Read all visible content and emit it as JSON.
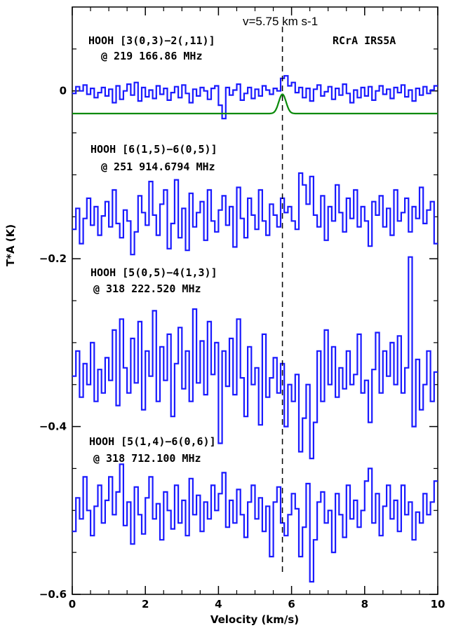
{
  "chart_data": {
    "type": "line",
    "title": "",
    "xlabel": "Velocity (km/s)",
    "ylabel": "T*A (K)",
    "xlim": [
      0,
      10
    ],
    "ylim": [
      -0.6,
      0.1
    ],
    "xticks": [
      0,
      2,
      4,
      6,
      8,
      10
    ],
    "xtick_labels": [
      "0",
      "2",
      "4",
      "6",
      "8",
      "10"
    ],
    "yticks": [
      0,
      -0.2,
      -0.4,
      -0.6
    ],
    "ytick_labels": [
      "0",
      "−0.2",
      "−0.4",
      "−0.6"
    ],
    "grid": false,
    "source_label": "RCrA IRS5A",
    "vline": {
      "x": 5.75,
      "label": "v=5.75 km s-1",
      "style": "dashed"
    },
    "series": [
      {
        "label_line1": "HOOH [3(0,3)−2(,11)]",
        "label_line2": "@ 219 166.86 MHz",
        "color": "#1a1aff",
        "x": [
          0.0,
          0.1,
          0.2,
          0.3,
          0.4,
          0.5,
          0.6,
          0.7,
          0.8,
          0.9,
          1.0,
          1.1,
          1.2,
          1.3,
          1.4,
          1.5,
          1.6,
          1.7,
          1.8,
          1.9,
          2.0,
          2.1,
          2.2,
          2.3,
          2.4,
          2.5,
          2.6,
          2.7,
          2.8,
          2.9,
          3.0,
          3.1,
          3.2,
          3.3,
          3.4,
          3.5,
          3.6,
          3.7,
          3.8,
          3.9,
          4.0,
          4.1,
          4.2,
          4.3,
          4.4,
          4.5,
          4.6,
          4.7,
          4.8,
          4.9,
          5.0,
          5.1,
          5.2,
          5.3,
          5.4,
          5.5,
          5.6,
          5.7,
          5.8,
          5.9,
          6.0,
          6.1,
          6.2,
          6.3,
          6.4,
          6.5,
          6.6,
          6.7,
          6.8,
          6.9,
          7.0,
          7.1,
          7.2,
          7.3,
          7.4,
          7.5,
          7.6,
          7.7,
          7.8,
          7.9,
          8.0,
          8.1,
          8.2,
          8.3,
          8.4,
          8.5,
          8.6,
          8.7,
          8.8,
          8.9,
          9.0,
          9.1,
          9.2,
          9.3,
          9.4,
          9.5,
          9.6,
          9.7,
          9.8,
          9.9
        ],
        "y": [
          -0.003,
          0.005,
          0.0,
          0.007,
          -0.004,
          0.003,
          -0.008,
          -0.002,
          0.004,
          -0.006,
          0.002,
          -0.014,
          0.006,
          -0.01,
          0.0,
          0.008,
          -0.005,
          0.01,
          -0.012,
          0.004,
          -0.007,
          0.001,
          -0.009,
          0.006,
          -0.004,
          0.003,
          -0.011,
          -0.002,
          0.005,
          -0.008,
          0.007,
          -0.003,
          -0.014,
          0.002,
          -0.006,
          0.004,
          0.0,
          -0.01,
          0.003,
          0.006,
          -0.017,
          -0.033,
          0.004,
          -0.005,
          0.001,
          0.008,
          -0.011,
          -0.003,
          0.004,
          -0.009,
          0.002,
          -0.006,
          0.006,
          0.001,
          -0.004,
          0.003,
          0.0,
          0.015,
          0.018,
          0.006,
          0.01,
          -0.002,
          0.004,
          -0.008,
          0.003,
          -0.012,
          0.002,
          0.007,
          -0.006,
          -0.001,
          0.005,
          -0.01,
          0.003,
          -0.005,
          0.008,
          -0.003,
          -0.014,
          0.001,
          -0.008,
          0.004,
          -0.006,
          0.005,
          -0.011,
          0.0,
          0.006,
          -0.004,
          0.002,
          -0.009,
          0.004,
          -0.002,
          0.007,
          -0.007,
          0.001,
          -0.012,
          0.003,
          -0.005,
          0.005,
          -0.003,
          0.001,
          0.006
        ]
      },
      {
        "label_line1": "HOOH [6(1,5)−6(0,5)]",
        "label_line2": "@ 251 914.6794 MHz",
        "color": "#1a1aff",
        "x": [
          0.0,
          0.1,
          0.2,
          0.3,
          0.4,
          0.5,
          0.6,
          0.7,
          0.8,
          0.9,
          1.0,
          1.1,
          1.2,
          1.3,
          1.4,
          1.5,
          1.6,
          1.7,
          1.8,
          1.9,
          2.0,
          2.1,
          2.2,
          2.3,
          2.4,
          2.5,
          2.6,
          2.7,
          2.8,
          2.9,
          3.0,
          3.1,
          3.2,
          3.3,
          3.4,
          3.5,
          3.6,
          3.7,
          3.8,
          3.9,
          4.0,
          4.1,
          4.2,
          4.3,
          4.4,
          4.5,
          4.6,
          4.7,
          4.8,
          4.9,
          5.0,
          5.1,
          5.2,
          5.3,
          5.4,
          5.5,
          5.6,
          5.7,
          5.8,
          5.9,
          6.0,
          6.1,
          6.2,
          6.3,
          6.4,
          6.5,
          6.6,
          6.7,
          6.8,
          6.9,
          7.0,
          7.1,
          7.2,
          7.3,
          7.4,
          7.5,
          7.6,
          7.7,
          7.8,
          7.9,
          8.0,
          8.1,
          8.2,
          8.3,
          8.4,
          8.5,
          8.6,
          8.7,
          8.8,
          8.9,
          9.0,
          9.1,
          9.2,
          9.3,
          9.4,
          9.5,
          9.6,
          9.7,
          9.8,
          9.9
        ],
        "y": [
          -0.165,
          -0.14,
          -0.182,
          -0.152,
          -0.128,
          -0.16,
          -0.138,
          -0.172,
          -0.149,
          -0.132,
          -0.162,
          -0.118,
          -0.158,
          -0.175,
          -0.142,
          -0.155,
          -0.195,
          -0.168,
          -0.125,
          -0.145,
          -0.16,
          -0.108,
          -0.148,
          -0.172,
          -0.135,
          -0.118,
          -0.188,
          -0.158,
          -0.106,
          -0.175,
          -0.14,
          -0.19,
          -0.122,
          -0.162,
          -0.145,
          -0.132,
          -0.178,
          -0.118,
          -0.155,
          -0.168,
          -0.142,
          -0.125,
          -0.16,
          -0.138,
          -0.186,
          -0.115,
          -0.152,
          -0.175,
          -0.128,
          -0.148,
          -0.165,
          -0.118,
          -0.155,
          -0.172,
          -0.135,
          -0.148,
          -0.162,
          -0.128,
          -0.145,
          -0.138,
          -0.155,
          -0.165,
          -0.098,
          -0.112,
          -0.135,
          -0.102,
          -0.148,
          -0.162,
          -0.125,
          -0.178,
          -0.138,
          -0.155,
          -0.112,
          -0.145,
          -0.168,
          -0.128,
          -0.152,
          -0.118,
          -0.162,
          -0.138,
          -0.155,
          -0.185,
          -0.132,
          -0.148,
          -0.125,
          -0.162,
          -0.14,
          -0.172,
          -0.118,
          -0.155,
          -0.145,
          -0.128,
          -0.168,
          -0.138,
          -0.152,
          -0.115,
          -0.158,
          -0.142,
          -0.132,
          -0.182
        ]
      },
      {
        "label_line1": "HOOH [5(0,5)−4(1,3)]",
        "label_line2": "@ 318 222.520 MHz",
        "color": "#1a1aff",
        "x": [
          0.0,
          0.1,
          0.2,
          0.3,
          0.4,
          0.5,
          0.6,
          0.7,
          0.8,
          0.9,
          1.0,
          1.1,
          1.2,
          1.3,
          1.4,
          1.5,
          1.6,
          1.7,
          1.8,
          1.9,
          2.0,
          2.1,
          2.2,
          2.3,
          2.4,
          2.5,
          2.6,
          2.7,
          2.8,
          2.9,
          3.0,
          3.1,
          3.2,
          3.3,
          3.4,
          3.5,
          3.6,
          3.7,
          3.8,
          3.9,
          4.0,
          4.1,
          4.2,
          4.3,
          4.4,
          4.5,
          4.6,
          4.7,
          4.8,
          4.9,
          5.0,
          5.1,
          5.2,
          5.3,
          5.4,
          5.5,
          5.6,
          5.7,
          5.8,
          5.9,
          6.0,
          6.1,
          6.2,
          6.3,
          6.4,
          6.5,
          6.6,
          6.7,
          6.8,
          6.9,
          7.0,
          7.1,
          7.2,
          7.3,
          7.4,
          7.5,
          7.6,
          7.7,
          7.8,
          7.9,
          8.0,
          8.1,
          8.2,
          8.3,
          8.4,
          8.5,
          8.6,
          8.7,
          8.8,
          8.9,
          9.0,
          9.1,
          9.2,
          9.3,
          9.4,
          9.5,
          9.6,
          9.7,
          9.8,
          9.9
        ],
        "y": [
          -0.34,
          -0.31,
          -0.365,
          -0.325,
          -0.35,
          -0.3,
          -0.37,
          -0.332,
          -0.36,
          -0.318,
          -0.345,
          -0.285,
          -0.375,
          -0.272,
          -0.33,
          -0.36,
          -0.295,
          -0.348,
          -0.275,
          -0.38,
          -0.31,
          -0.34,
          -0.262,
          -0.37,
          -0.305,
          -0.345,
          -0.29,
          -0.388,
          -0.325,
          -0.282,
          -0.355,
          -0.31,
          -0.37,
          -0.26,
          -0.348,
          -0.298,
          -0.362,
          -0.275,
          -0.338,
          -0.3,
          -0.42,
          -0.31,
          -0.352,
          -0.295,
          -0.362,
          -0.272,
          -0.342,
          -0.388,
          -0.305,
          -0.35,
          -0.33,
          -0.398,
          -0.29,
          -0.365,
          -0.342,
          -0.318,
          -0.36,
          -0.325,
          -0.4,
          -0.35,
          -0.37,
          -0.338,
          -0.43,
          -0.39,
          -0.35,
          -0.438,
          -0.395,
          -0.31,
          -0.37,
          -0.285,
          -0.35,
          -0.305,
          -0.365,
          -0.33,
          -0.355,
          -0.31,
          -0.35,
          -0.338,
          -0.29,
          -0.36,
          -0.345,
          -0.395,
          -0.332,
          -0.288,
          -0.36,
          -0.31,
          -0.34,
          -0.3,
          -0.35,
          -0.292,
          -0.36,
          -0.33,
          -0.198,
          -0.4,
          -0.32,
          -0.38,
          -0.35,
          -0.31,
          -0.37,
          -0.335
        ]
      },
      {
        "label_line1": "HOOH [5(1,4)−6(0,6)]",
        "label_line2": "@ 318 712.100 MHz",
        "color": "#1a1aff",
        "x": [
          0.0,
          0.1,
          0.2,
          0.3,
          0.4,
          0.5,
          0.6,
          0.7,
          0.8,
          0.9,
          1.0,
          1.1,
          1.2,
          1.3,
          1.4,
          1.5,
          1.6,
          1.7,
          1.8,
          1.9,
          2.0,
          2.1,
          2.2,
          2.3,
          2.4,
          2.5,
          2.6,
          2.7,
          2.8,
          2.9,
          3.0,
          3.1,
          3.2,
          3.3,
          3.4,
          3.5,
          3.6,
          3.7,
          3.8,
          3.9,
          4.0,
          4.1,
          4.2,
          4.3,
          4.4,
          4.5,
          4.6,
          4.7,
          4.8,
          4.9,
          5.0,
          5.1,
          5.2,
          5.3,
          5.4,
          5.5,
          5.6,
          5.7,
          5.8,
          5.9,
          6.0,
          6.1,
          6.2,
          6.3,
          6.4,
          6.5,
          6.6,
          6.7,
          6.8,
          6.9,
          7.0,
          7.1,
          7.2,
          7.3,
          7.4,
          7.5,
          7.6,
          7.7,
          7.8,
          7.9,
          8.0,
          8.1,
          8.2,
          8.3,
          8.4,
          8.5,
          8.6,
          8.7,
          8.8,
          8.9,
          9.0,
          9.1,
          9.2,
          9.3,
          9.4,
          9.5,
          9.6,
          9.7,
          9.8,
          9.9
        ],
        "y": [
          -0.525,
          -0.485,
          -0.51,
          -0.46,
          -0.5,
          -0.53,
          -0.495,
          -0.47,
          -0.515,
          -0.488,
          -0.46,
          -0.505,
          -0.478,
          -0.445,
          -0.518,
          -0.49,
          -0.54,
          -0.472,
          -0.505,
          -0.528,
          -0.485,
          -0.46,
          -0.51,
          -0.492,
          -0.535,
          -0.478,
          -0.5,
          -0.522,
          -0.47,
          -0.515,
          -0.488,
          -0.53,
          -0.462,
          -0.505,
          -0.482,
          -0.525,
          -0.49,
          -0.51,
          -0.47,
          -0.5,
          -0.48,
          -0.455,
          -0.52,
          -0.488,
          -0.515,
          -0.475,
          -0.505,
          -0.532,
          -0.49,
          -0.47,
          -0.51,
          -0.485,
          -0.525,
          -0.495,
          -0.555,
          -0.49,
          -0.472,
          -0.515,
          -0.53,
          -0.505,
          -0.48,
          -0.498,
          -0.555,
          -0.52,
          -0.468,
          -0.585,
          -0.535,
          -0.49,
          -0.478,
          -0.515,
          -0.5,
          -0.55,
          -0.48,
          -0.505,
          -0.532,
          -0.47,
          -0.51,
          -0.488,
          -0.52,
          -0.5,
          -0.465,
          -0.45,
          -0.515,
          -0.48,
          -0.53,
          -0.495,
          -0.47,
          -0.51,
          -0.488,
          -0.525,
          -0.47,
          -0.505,
          -0.49,
          -0.535,
          -0.502,
          -0.515,
          -0.48,
          -0.505,
          -0.49,
          -0.465
        ]
      }
    ],
    "fit": {
      "color": "#0a8a0a",
      "baseline": -0.027,
      "amplitude": 0.023,
      "center": 5.75,
      "sigma": 0.1
    }
  }
}
